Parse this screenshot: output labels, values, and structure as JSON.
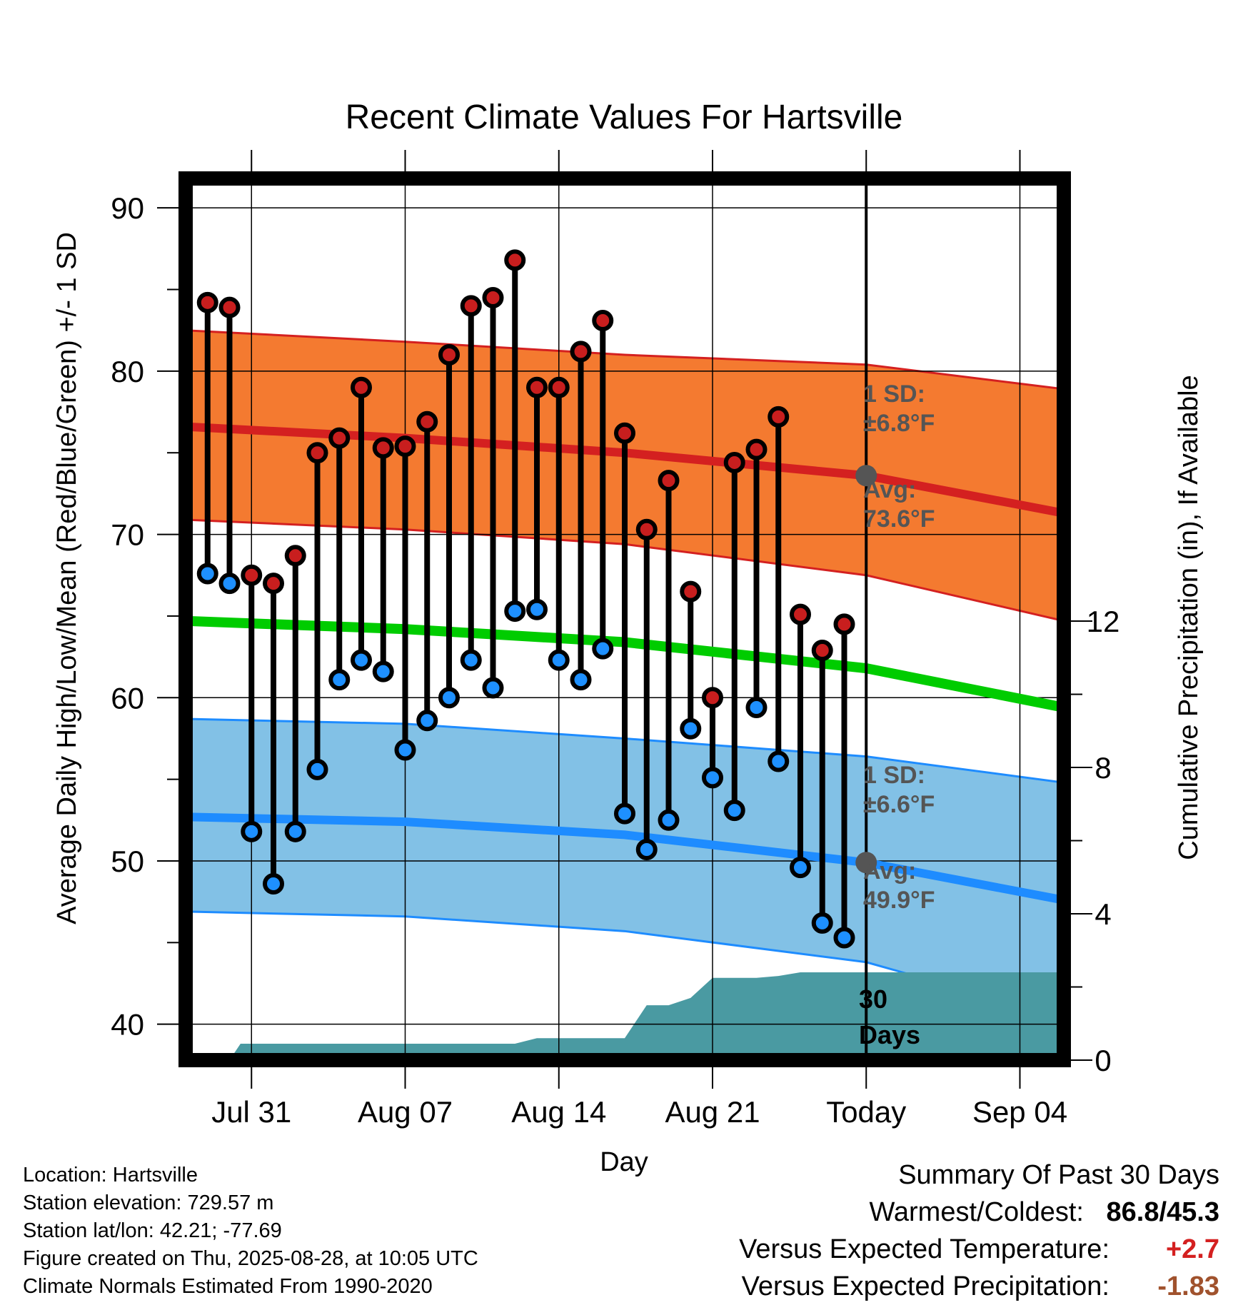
{
  "title": "Recent Climate Values For Hartsville",
  "xlabel": "Day",
  "ylabel_left": "Average Daily High/Low/Mean (Red/Blue/Green) +/- 1 SD",
  "ylabel_right": "Cumulative Precipitation (in), If Available",
  "annotations": {
    "high_sd_line1": "1 SD:",
    "high_sd_line2": "±6.8°F",
    "high_avg_line1": "Avg:",
    "high_avg_line2": "73.6°F",
    "low_sd_line1": "1 SD:",
    "low_sd_line2": "±6.6°F",
    "low_avg_line1": "Avg:",
    "low_avg_line2": "49.9°F",
    "days_line1": "30",
    "days_line2": "Days"
  },
  "info": {
    "location": "Location: Hartsville",
    "elevation": "Station elevation: 729.57 m",
    "latlon": "Station lat/lon: 42.21; -77.69",
    "created": "Figure created on Thu, 2025-08-28, at 10:05 UTC",
    "normals": "Climate Normals Estimated From 1990-2020"
  },
  "summary": {
    "heading": "Summary Of Past 30 Days",
    "warmest_label": "Warmest/Coldest:",
    "warmest_value": "86.8/45.3",
    "temp_label": "Versus Expected Temperature:",
    "temp_value": "+2.7",
    "precip_label": "Versus Expected Precipitation:",
    "precip_value": "-1.83"
  },
  "colors": {
    "high_band": "#f47a30",
    "high_line": "#d42020",
    "low_band": "#82c1e6",
    "low_line": "#1e8cff",
    "mean_line": "#00cc00",
    "precip": "#4a9aa2",
    "high_dot": "#c81e1e",
    "low_dot": "#1e90ff",
    "temp_positive": "#d42020",
    "precip_negative": "#a0522d"
  },
  "chart_data": {
    "type": "line",
    "x_start_day": "Jul 28",
    "x_ticks": [
      "Jul 31",
      "Aug 07",
      "Aug 14",
      "Aug 21",
      "Today",
      "Sep 04"
    ],
    "x_tick_day_index": [
      3,
      10,
      17,
      24,
      31,
      38
    ],
    "x_range": [
      0,
      40
    ],
    "today_index": 31,
    "y_left": {
      "ticks": [
        40,
        50,
        60,
        70,
        80,
        90
      ],
      "range": [
        37.8,
        91.8
      ],
      "label": "Average Daily High/Low/Mean (Red/Blue/Green) +/- 1 SD"
    },
    "y_right": {
      "ticks": [
        0,
        4,
        8,
        12
      ],
      "range": [
        0,
        24.1
      ],
      "label": "Cumulative Precipitation (in), If Available"
    },
    "observed": {
      "day_index": [
        1,
        2,
        3,
        4,
        5,
        6,
        7,
        8,
        9,
        10,
        11,
        12,
        13,
        14,
        15,
        16,
        17,
        18,
        19,
        20,
        21,
        22,
        23,
        24,
        25,
        26,
        27,
        28,
        29,
        30
      ],
      "high": [
        84.2,
        83.9,
        67.5,
        67.0,
        68.7,
        75.0,
        75.9,
        79.0,
        75.3,
        75.4,
        76.9,
        81.0,
        84.0,
        84.5,
        86.8,
        79.0,
        79.0,
        81.2,
        83.1,
        76.2,
        70.3,
        73.3,
        66.5,
        60.0,
        74.4,
        75.2,
        77.2,
        65.1,
        62.9,
        64.5
      ],
      "low": [
        67.6,
        67.0,
        51.8,
        48.6,
        51.8,
        55.6,
        61.1,
        62.3,
        61.6,
        56.8,
        58.6,
        60.0,
        62.3,
        60.6,
        65.3,
        65.4,
        62.3,
        61.1,
        63.0,
        52.9,
        50.7,
        52.5,
        58.1,
        55.1,
        53.1,
        59.4,
        56.1,
        49.6,
        46.2,
        45.3
      ]
    },
    "normals": {
      "day_index": [
        0,
        10,
        20,
        31,
        40
      ],
      "high_avg": [
        76.6,
        75.9,
        75.0,
        73.6,
        71.3
      ],
      "high_upper": [
        82.5,
        81.8,
        81.0,
        80.4,
        78.9
      ],
      "high_lower": [
        70.9,
        70.3,
        69.4,
        67.5,
        64.7
      ],
      "mean": [
        64.7,
        64.2,
        63.4,
        61.8,
        59.4
      ],
      "low_avg": [
        52.7,
        52.4,
        51.6,
        49.9,
        47.6
      ],
      "low_upper": [
        58.7,
        58.4,
        57.5,
        56.4,
        54.8
      ],
      "low_lower": [
        46.9,
        46.6,
        45.7,
        43.8,
        40.4
      ]
    },
    "precip_cumulative": {
      "day_index": [
        2.0,
        2.5,
        3.0,
        15.0,
        16.0,
        20.0,
        21.0,
        22.0,
        23.0,
        24.0,
        26.0,
        27.0,
        28.0,
        31.0,
        40.0
      ],
      "values": [
        0.0,
        0.45,
        0.45,
        0.45,
        0.6,
        0.6,
        1.5,
        1.5,
        1.7,
        2.25,
        2.25,
        2.3,
        2.4,
        2.4,
        2.4
      ]
    }
  }
}
